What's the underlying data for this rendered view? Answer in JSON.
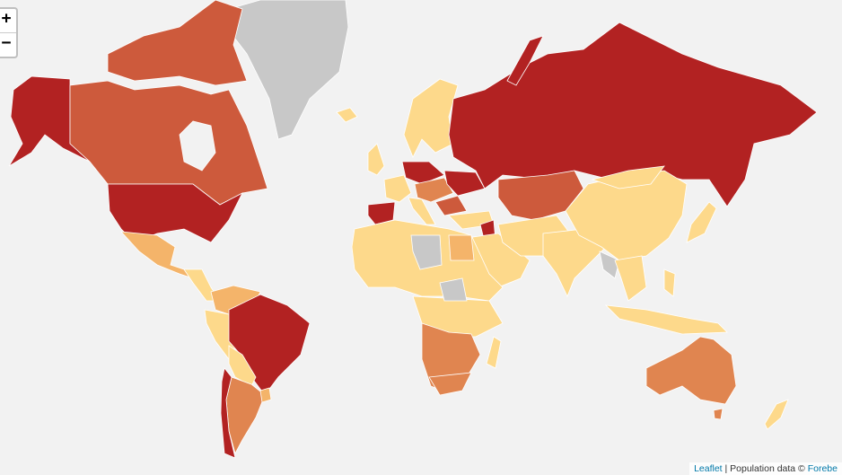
{
  "zoom_control": {
    "zoom_in": "+",
    "zoom_out": "−"
  },
  "attribution": {
    "leaflet_link": "Leaflet",
    "separator": " | ",
    "text": "Population data © ",
    "source_link": "Forebe"
  },
  "colors": {
    "background": "#f2f2f2",
    "no_data": "#c8c8c8",
    "level1": "#fdd98b",
    "level2": "#f4b46a",
    "level3": "#e08550",
    "level4": "#cd5a3c",
    "level5": "#b22222"
  }
}
